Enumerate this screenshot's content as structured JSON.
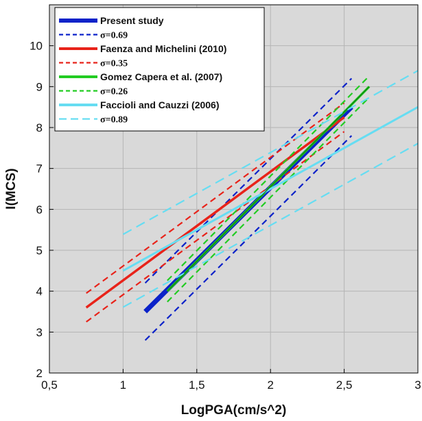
{
  "chart_data": {
    "type": "line",
    "title": "",
    "xlabel": "LogPGA(cm/s^2)",
    "ylabel": "I(MCS)",
    "xlim": [
      0.5,
      3
    ],
    "ylim": [
      2,
      11
    ],
    "x_ticks": [
      "0,5",
      "1",
      "1,5",
      "2",
      "2,5",
      "3"
    ],
    "x_tick_values": [
      0.5,
      1,
      1.5,
      2,
      2.5,
      3
    ],
    "y_ticks": [
      "2",
      "3",
      "4",
      "5",
      "6",
      "7",
      "8",
      "9",
      "10"
    ],
    "y_tick_values": [
      2,
      3,
      4,
      5,
      6,
      7,
      8,
      9,
      10
    ],
    "grid": true,
    "background": "#d9d9d9",
    "legend_position": "top-left",
    "series": [
      {
        "name": "Present study",
        "color": "#0b22c9",
        "style": "solid",
        "x": [
          1.15,
          2.55
        ],
        "y": [
          3.5,
          8.5
        ]
      },
      {
        "name": "σ=0.69",
        "color": "#0b22c9",
        "style": "dashed",
        "x": [
          1.15,
          2.55
        ],
        "y": [
          2.8,
          7.8
        ]
      },
      {
        "name": "σ=0.69",
        "color": "#0b22c9",
        "style": "dashed",
        "x": [
          1.15,
          2.55
        ],
        "y": [
          4.2,
          9.2
        ]
      },
      {
        "name": "Faenza and Michelini (2010)",
        "color": "#e8231a",
        "style": "solid",
        "x": [
          0.75,
          2.5
        ],
        "y": [
          3.6,
          8.25
        ]
      },
      {
        "name": "σ=0.35",
        "color": "#e8231a",
        "style": "dashed",
        "x": [
          0.75,
          2.5
        ],
        "y": [
          3.25,
          7.9
        ]
      },
      {
        "name": "σ=0.35",
        "color": "#e8231a",
        "style": "dashed",
        "x": [
          0.75,
          2.5
        ],
        "y": [
          3.95,
          8.6
        ]
      },
      {
        "name": "Gomez Capera et al. (2007)",
        "color": "#22cc22",
        "style": "solid",
        "x": [
          1.3,
          2.67
        ],
        "y": [
          4.0,
          9.0
        ]
      },
      {
        "name": "σ=0.26",
        "color": "#22cc22",
        "style": "dashed",
        "x": [
          1.3,
          2.67
        ],
        "y": [
          3.74,
          8.74
        ]
      },
      {
        "name": "σ=0.26",
        "color": "#22cc22",
        "style": "dashed",
        "x": [
          1.3,
          2.67
        ],
        "y": [
          4.26,
          9.26
        ]
      },
      {
        "name": "Faccioli and Cauzzi (2006)",
        "color": "#66ddf2",
        "style": "solid",
        "x": [
          1.0,
          3.0
        ],
        "y": [
          4.5,
          8.5
        ]
      },
      {
        "name": "σ=0.89",
        "color": "#66ddf2",
        "style": "dashed",
        "x": [
          1.0,
          3.0
        ],
        "y": [
          3.61,
          7.61
        ]
      },
      {
        "name": "σ=0.89",
        "color": "#66ddf2",
        "style": "dashed",
        "x": [
          1.0,
          3.0
        ],
        "y": [
          5.39,
          9.39
        ]
      }
    ],
    "legend": [
      {
        "label": "Present study",
        "color": "#0b22c9",
        "style": "solid",
        "sigma": false
      },
      {
        "label": "σ=0.69",
        "color": "#0b22c9",
        "style": "dashed",
        "sigma": true
      },
      {
        "label": "Faenza and Michelini (2010)",
        "color": "#e8231a",
        "style": "solid",
        "sigma": false
      },
      {
        "label": "σ=0.35",
        "color": "#e8231a",
        "style": "dashed",
        "sigma": true
      },
      {
        "label": "Gomez Capera et al. (2007)",
        "color": "#22cc22",
        "style": "solid",
        "sigma": false
      },
      {
        "label": "σ=0.26",
        "color": "#22cc22",
        "style": "dashed",
        "sigma": true
      },
      {
        "label": "Faccioli and Cauzzi (2006)",
        "color": "#66ddf2",
        "style": "solid",
        "sigma": false
      },
      {
        "label": "σ=0.89",
        "color": "#66ddf2",
        "style": "dashed",
        "sigma": true
      }
    ]
  }
}
